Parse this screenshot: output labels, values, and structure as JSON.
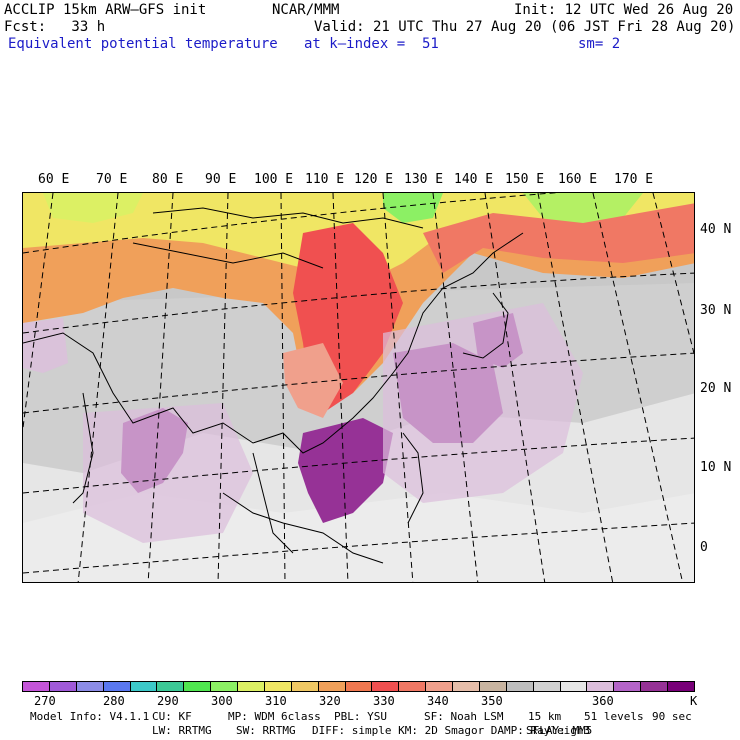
{
  "header": {
    "model_line": "ACCLIP 15km ARW–GFS init",
    "fcst_line": "Fcst:   33 h",
    "variable_line": "Equivalent potential temperature",
    "center_line": "NCAR/MMM",
    "valid_line": "Valid: 21 UTC Thu 27 Aug 20 (06 JST Fri 28 Aug 20)",
    "level_line": "at k–index =  51",
    "init_line": "Init: 12 UTC Wed 26 Aug 20",
    "smooth_line": "sm= 2"
  },
  "map": {
    "lon_labels": [
      "60 E",
      "70 E",
      "80 E",
      "90 E",
      "100 E",
      "110 E",
      "120 E",
      "130 E",
      "140 E",
      "150 E",
      "160 E",
      "170 E"
    ],
    "lat_labels": [
      "40 N",
      "30 N",
      "20 N",
      "10 N",
      "0"
    ]
  },
  "colorbar": {
    "colors": [
      "#c455d8",
      "#a05ad8",
      "#8c8ce6",
      "#5a78f0",
      "#3cc8c8",
      "#3cc896",
      "#50e650",
      "#8cf064",
      "#dcf064",
      "#f0e664",
      "#f0c864",
      "#f0a05a",
      "#f07850",
      "#f05050",
      "#f07864",
      "#f0a08c",
      "#e6beaa",
      "#c8b4a0",
      "#bebebe",
      "#d2d2d2",
      "#e6e6e6",
      "#dcbedc",
      "#b464c8",
      "#963296",
      "#780078"
    ],
    "tick_labels": [
      "270",
      "280",
      "290",
      "300",
      "310",
      "320",
      "330",
      "340",
      "350",
      "360"
    ],
    "unit": "K"
  },
  "footer": {
    "line1": [
      "Model Info: V4.1.1",
      "CU: KF",
      "MP: WDM 6class",
      "PBL: YSU",
      "SF: Noah LSM",
      "15 km",
      "51 levels",
      "90 sec"
    ],
    "line2": [
      "LW: RRTMG",
      "SW: RRTMG",
      "DIFF: simple KM: 2D Smagor DAMP: Rayleigh3",
      "SFLAY: MM5",
      ""
    ]
  }
}
